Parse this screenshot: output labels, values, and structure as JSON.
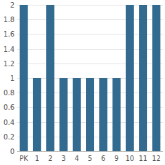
{
  "chart_data": {
    "type": "bar",
    "categories": [
      "PK",
      "1",
      "2",
      "3",
      "4",
      "5",
      "6",
      "9",
      "10",
      "11",
      "12"
    ],
    "values": [
      2,
      1,
      2,
      1,
      1,
      1,
      1,
      1,
      2,
      2,
      2
    ],
    "color": "#336a90",
    "ylim": [
      0,
      2
    ],
    "yticks": [
      0,
      0.2,
      0.4,
      0.6,
      0.8,
      1,
      1.2,
      1.4,
      1.6,
      1.8,
      2
    ],
    "grid": true
  }
}
